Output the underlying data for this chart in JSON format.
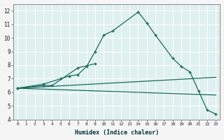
{
  "xlabel": "Humidex (Indice chaleur)",
  "lines": [
    {
      "x": [
        0,
        3,
        4,
        7,
        9
      ],
      "y": [
        6.3,
        6.5,
        6.5,
        7.8,
        8.1
      ],
      "has_markers": true
    },
    {
      "x": [
        0,
        3,
        5,
        6,
        7,
        8,
        9,
        10,
        11,
        14,
        15,
        16,
        18,
        19,
        20,
        21,
        22,
        23
      ],
      "y": [
        6.3,
        6.6,
        7.0,
        7.2,
        7.3,
        7.9,
        9.0,
        10.2,
        10.5,
        11.9,
        11.1,
        10.2,
        8.5,
        7.9,
        7.5,
        6.1,
        4.7,
        4.4
      ],
      "has_markers": true
    },
    {
      "x": [
        0,
        23
      ],
      "y": [
        6.3,
        7.1
      ],
      "has_markers": false
    },
    {
      "x": [
        0,
        23
      ],
      "y": [
        6.3,
        5.8
      ],
      "has_markers": false
    }
  ],
  "xlim": [
    -0.5,
    23.5
  ],
  "ylim": [
    4,
    12.5
  ],
  "yticks": [
    4,
    5,
    6,
    7,
    8,
    9,
    10,
    11,
    12
  ],
  "xticks": [
    0,
    1,
    2,
    3,
    4,
    5,
    6,
    7,
    8,
    9,
    10,
    11,
    12,
    13,
    14,
    15,
    16,
    17,
    18,
    19,
    20,
    21,
    22,
    23
  ],
  "line_color": "#1a6b5a",
  "plot_bg": "#dff0f0",
  "fig_bg": "#f5f5f5",
  "grid_color": "#ffffff",
  "marker": "+"
}
